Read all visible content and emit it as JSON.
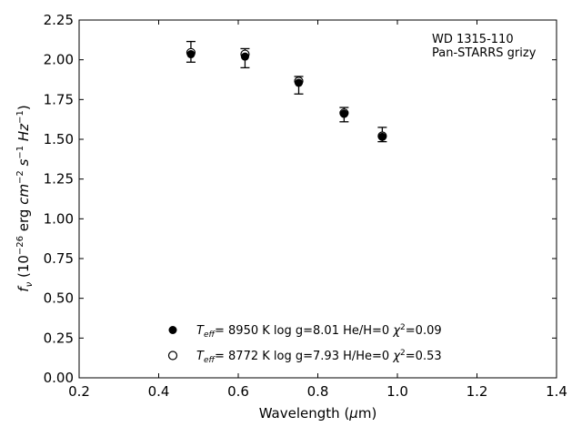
{
  "chart_data": {
    "type": "scatter",
    "title": "",
    "xlabel": "Wavelength (μm)",
    "ylabel": "f_ν (10^-26 erg cm^-2 s^-1 Hz^-1)",
    "xlim": [
      0.2,
      1.4
    ],
    "ylim": [
      0.0,
      2.25
    ],
    "x_ticks": [
      0.2,
      0.4,
      0.6,
      0.8,
      1.0,
      1.2,
      1.4
    ],
    "x_tick_labels": [
      "0.2",
      "0.4",
      "0.6",
      "0.8",
      "1.0",
      "1.2",
      "1.4"
    ],
    "y_ticks": [
      0.0,
      0.25,
      0.5,
      0.75,
      1.0,
      1.25,
      1.5,
      1.75,
      2.0,
      2.25
    ],
    "y_tick_labels": [
      "0.00",
      "0.25",
      "0.50",
      "0.75",
      "1.00",
      "1.25",
      "1.50",
      "1.75",
      "2.00",
      "2.25"
    ],
    "grid": false,
    "annotation": [
      "WD 1315-110",
      "Pan-STARRS grizy"
    ],
    "observed": {
      "x": [
        0.481,
        0.617,
        0.752,
        0.866,
        0.962
      ],
      "y": [
        2.05,
        2.01,
        1.84,
        1.655,
        1.53
      ],
      "err": [
        0.065,
        0.06,
        0.055,
        0.045,
        0.045
      ]
    },
    "series": [
      {
        "marker": "filled-circle",
        "x": [
          0.481,
          0.617,
          0.752,
          0.866,
          0.962
        ],
        "y": [
          2.035,
          2.02,
          1.855,
          1.66,
          1.515
        ]
      },
      {
        "marker": "open-circle",
        "x": [
          0.481,
          0.617,
          0.752,
          0.866,
          0.962
        ],
        "y": [
          2.045,
          2.035,
          1.865,
          1.665,
          1.52
        ]
      }
    ],
    "legend": {
      "placement": "lower-center",
      "entries": [
        {
          "teff": "8950 K",
          "logg": "log g=8.01",
          "comp": "He/H=0",
          "chi2": "=0.09"
        },
        {
          "teff": "8772 K",
          "logg": "log g=7.93",
          "comp": "H/He=0",
          "chi2": "=0.53"
        }
      ]
    }
  }
}
